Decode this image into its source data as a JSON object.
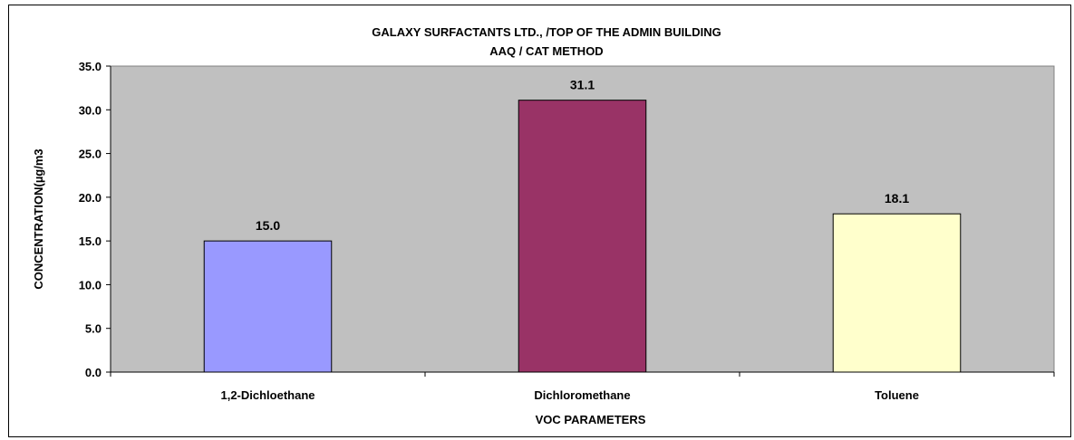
{
  "chart_data": {
    "type": "bar",
    "title": "GALAXY SURFACTANTS LTD., /TOP OF THE ADMIN BUILDING",
    "subtitle": "AAQ / CAT METHOD",
    "xlabel": "VOC PARAMETERS",
    "ylabel": "CONCENTRATION(µg/m3",
    "categories": [
      "1,2-Dichloethane",
      "Dichloromethane",
      "Toluene"
    ],
    "values": [
      15.0,
      31.1,
      18.1
    ],
    "data_labels": [
      "15.0",
      "31.1",
      "18.1"
    ],
    "bar_colors": [
      "#9999ff",
      "#993366",
      "#ffffcc"
    ],
    "plot_background": "#c0c0c0",
    "ylim": [
      0,
      35
    ],
    "ytick_labels": [
      "0.0",
      "5.0",
      "10.0",
      "15.0",
      "20.0",
      "25.0",
      "30.0",
      "35.0"
    ],
    "grid": false,
    "legend": "none"
  }
}
